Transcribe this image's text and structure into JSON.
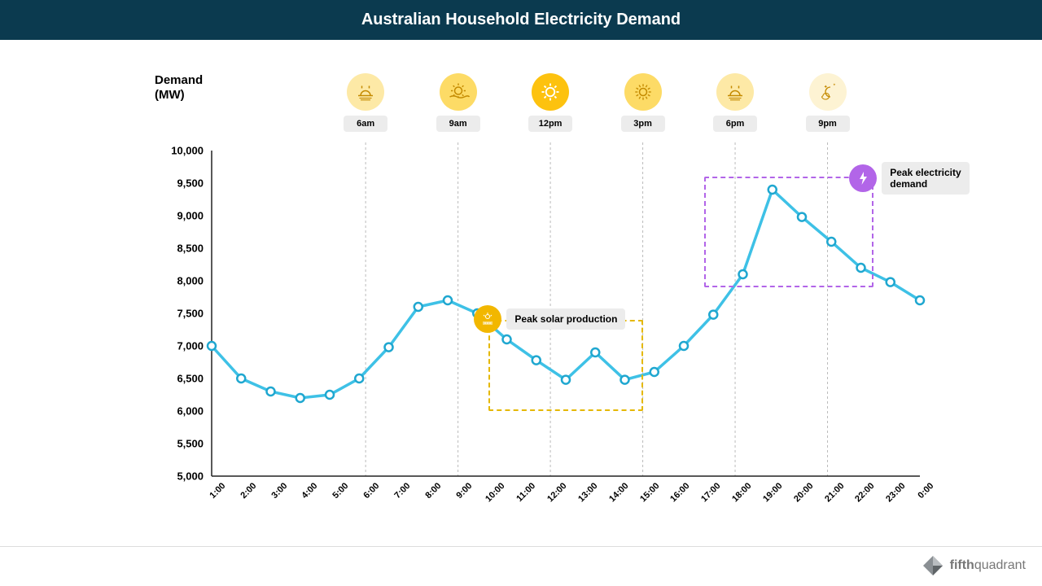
{
  "header": {
    "title": "Australian Household Electricity Demand"
  },
  "chart": {
    "type": "line",
    "ylabel_line1": "Demand",
    "ylabel_line2": "(MW)",
    "ylim": [
      5000,
      10000
    ],
    "ytick_step": 500,
    "yticks": [
      "5,000",
      "5,500",
      "6,000",
      "6,500",
      "7,000",
      "7,500",
      "8,000",
      "8,500",
      "9,000",
      "9,500",
      "10,000"
    ],
    "xticks": [
      "1:00",
      "2:00",
      "3:00",
      "4:00",
      "5:00",
      "6:00",
      "7:00",
      "8:00",
      "9:00",
      "10:00",
      "11:00",
      "12:00",
      "13:00",
      "14:00",
      "15:00",
      "16:00",
      "17:00",
      "18:00",
      "19:00",
      "20:00",
      "21:00",
      "22:00",
      "23:00",
      "0:00"
    ],
    "values": [
      7000,
      6500,
      6300,
      6200,
      6250,
      6500,
      6980,
      7600,
      7700,
      7500,
      7100,
      6780,
      6480,
      6900,
      6480,
      6600,
      7000,
      7480,
      8100,
      9400,
      8980,
      8600,
      8200,
      7980,
      7700
    ],
    "line_color": "#3ec1e6",
    "marker_stroke": "#1fa7d0",
    "marker_radius": 5,
    "grid_color": "#bbbbbb",
    "axis_color": "#222222",
    "background_color": "#ffffff",
    "vgrid_at_hours": [
      6,
      9,
      12,
      15,
      18,
      21
    ]
  },
  "time_icons": [
    {
      "hour": 6,
      "label": "6am",
      "bg": "#fde9a6",
      "type": "sunrise"
    },
    {
      "hour": 9,
      "label": "9am",
      "bg": "#fddb66",
      "type": "sun-horizon"
    },
    {
      "hour": 12,
      "label": "12pm",
      "bg": "#fdc20f",
      "type": "sun-full"
    },
    {
      "hour": 15,
      "label": "3pm",
      "bg": "#fddb66",
      "type": "sun-rays"
    },
    {
      "hour": 18,
      "label": "6pm",
      "bg": "#fde9a6",
      "type": "sunset"
    },
    {
      "hour": 21,
      "label": "9pm",
      "bg": "#fdf3d3",
      "type": "moon"
    }
  ],
  "annotations": {
    "solar": {
      "label": "Peak solar production",
      "icon_bg": "#f2b700",
      "box_color": "#e5b800",
      "box_hours": [
        10,
        15
      ],
      "box_yrange": [
        6000,
        7400
      ]
    },
    "demand": {
      "label_line1": "Peak electricity",
      "label_line2": "demand",
      "icon_bg": "#b265e8",
      "box_color": "#b265e8",
      "box_hours": [
        17,
        22.5
      ],
      "box_yrange": [
        7900,
        9600
      ]
    }
  },
  "brand": {
    "name_bold": "fifth",
    "name_light": "quadrant"
  }
}
